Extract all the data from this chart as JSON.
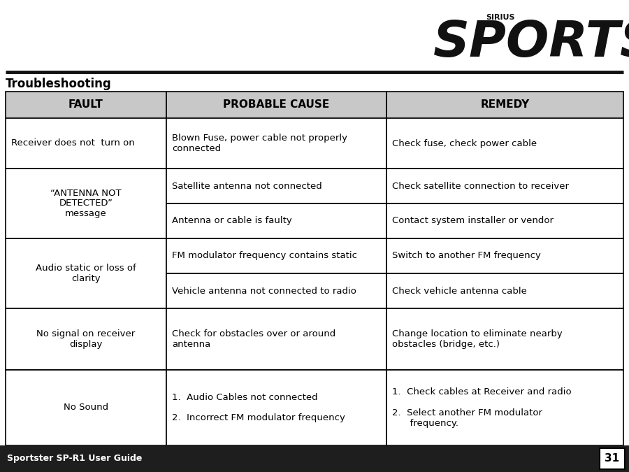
{
  "title": "Troubleshooting",
  "page_number": "31",
  "footer_text": "Sportster SP-R1 User Guide",
  "header_col1": "FAULT",
  "header_col2": "PROBABLE CAUSE",
  "header_col3": "REMEDY",
  "bg_color": "#ffffff",
  "header_bg": "#c8c8c8",
  "footer_bg": "#1e1e1e",
  "footer_text_color": "#ffffff",
  "sirius_text": "SIRIUS",
  "sportster_text": "SPORTSTER",
  "rows": [
    {
      "fault": "Receiver does not  turn on",
      "fault_align": "left",
      "sub_rows": [
        {
          "cause": "Blown Fuse, power cable not properly\nconnected",
          "remedy": "Check fuse, check power cable"
        }
      ]
    },
    {
      "fault": "“ANTENNA NOT\nDETECTED”\nmessage",
      "fault_align": "center",
      "sub_rows": [
        {
          "cause": "Satellite antenna not connected",
          "remedy": "Check satellite connection to receiver"
        },
        {
          "cause": "Antenna or cable is faulty",
          "remedy": "Contact system installer or vendor"
        }
      ]
    },
    {
      "fault": "Audio static or loss of\nclarity",
      "fault_align": "center",
      "sub_rows": [
        {
          "cause": "FM modulator frequency contains static",
          "remedy": "Switch to another FM frequency"
        },
        {
          "cause": "Vehicle antenna not connected to radio",
          "remedy": "Check vehicle antenna cable"
        }
      ]
    },
    {
      "fault": "No signal on receiver\ndisplay",
      "fault_align": "center",
      "sub_rows": [
        {
          "cause": "Check for obstacles over or around\nantenna",
          "remedy": "Change location to eliminate nearby\nobstacles (bridge, etc.)"
        }
      ]
    },
    {
      "fault": "No Sound",
      "fault_align": "center",
      "sub_rows": [
        {
          "cause": "1.  Audio Cables not connected\n\n2.  Incorrect FM modulator frequency",
          "remedy": "1.  Check cables at Receiver and radio\n\n2.  Select another FM modulator\n      frequency."
        }
      ]
    }
  ]
}
